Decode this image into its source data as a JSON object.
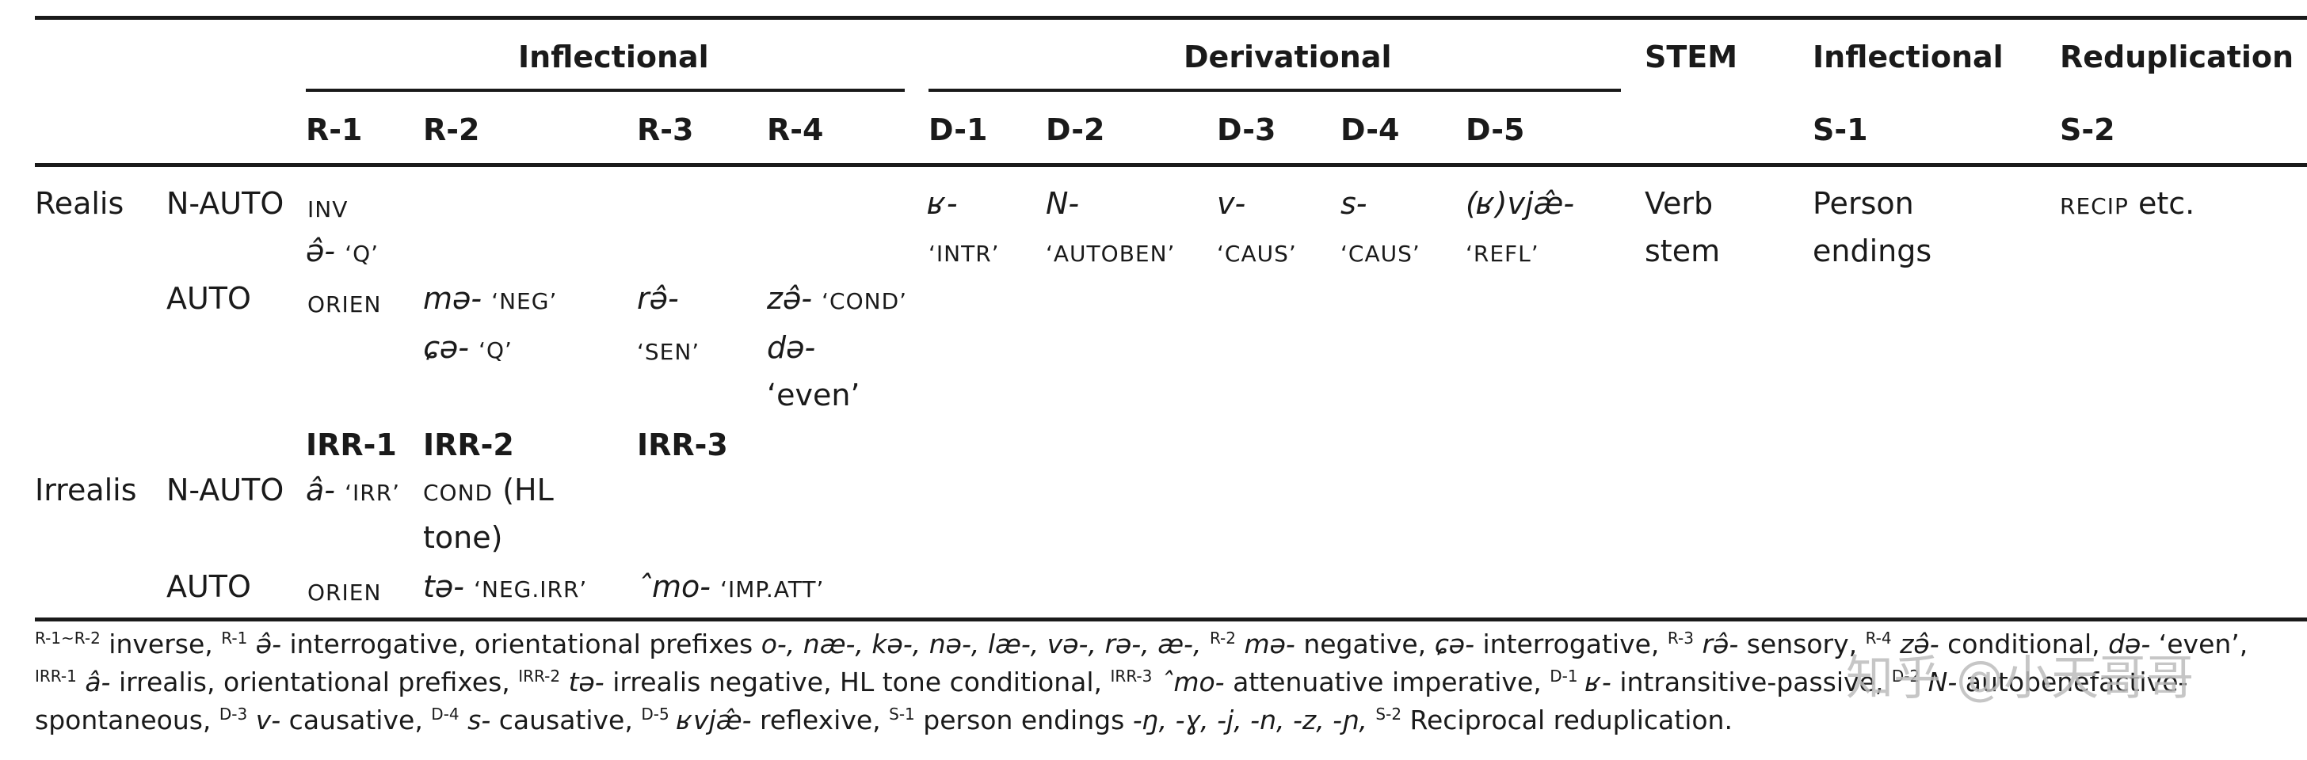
{
  "table": {
    "group_headers": {
      "inflectional_r": "Inflectional",
      "derivational": "Derivational",
      "stem": "STEM",
      "inflectional_s": "Inflectional",
      "reduplication": "Reduplication"
    },
    "slot_headers": [
      "R-1",
      "R-2",
      "R-3",
      "R-4",
      "D-1",
      "D-2",
      "D-3",
      "D-4",
      "D-5",
      "S-1",
      "S-2"
    ],
    "row_labels": {
      "realis": "Realis",
      "irrealis": "Irrealis",
      "n_auto": "N-AUTO",
      "auto": "AUTO"
    },
    "cells": {
      "realis_nauto_r1_a": "INV",
      "realis_nauto_r1_b_form": "ə̂-",
      "realis_nauto_r1_b_gloss": "‘Q’",
      "realis_d1_form": "ʁ-",
      "realis_d1_gloss": "‘INTR’",
      "realis_d2_form": "N-",
      "realis_d2_gloss": "‘AUTOBEN’",
      "realis_d3_form": "v-",
      "realis_d3_gloss": "‘CAUS’",
      "realis_d4_form": "s-",
      "realis_d4_gloss": "‘CAUS’",
      "realis_d5_form": "(ʁ)vjæ̂-",
      "realis_d5_gloss": "‘REFL’",
      "stem_line1": "Verb",
      "stem_line2": "stem",
      "s1_line1": "Person",
      "s1_line2": "endings",
      "s2_sc": "RECIP",
      "s2_rest": "etc.",
      "realis_auto_r1": "ORIEN",
      "realis_auto_r2a_form": "mə-",
      "realis_auto_r2a_gloss": "‘NEG’",
      "realis_auto_r2b_form": "ɕə-",
      "realis_auto_r2b_gloss": "‘Q’",
      "realis_auto_r3_form": "rə̂-",
      "realis_auto_r3_gloss": "‘SEN’",
      "realis_auto_r4a_form": "zə̂-",
      "realis_auto_r4a_gloss": "‘COND’",
      "realis_auto_r4b_form": "də-",
      "realis_auto_r4b_gloss": "‘even’",
      "irr1": "IRR-1",
      "irr2": "IRR-2",
      "irr3": "IRR-3",
      "irr_nauto_r1_form": "â-",
      "irr_nauto_r1_gloss": "‘IRR’",
      "irr_nauto_r2_sc": "COND",
      "irr_nauto_r2_rest": "(HL",
      "irr_nauto_r2_line2": "tone)",
      "irr_auto_r1": "ORIEN",
      "irr_auto_r2_form": "tə-",
      "irr_auto_r2_gloss": "‘NEG.IRR’",
      "irr_auto_r3_form": "ˆmo-",
      "irr_auto_r3_gloss": "‘IMP.ATT’"
    }
  },
  "notes": {
    "l1_s1": "R-1~R-2",
    "l1_t1": " inverse, ",
    "l1_s2": "R-1",
    "l1_i1": " ə̂-",
    "l1_t2": " interrogative, orientational prefixes ",
    "l1_i2": "o-, næ-, kə-, nə-, læ-, və-, rə-, æ-,",
    "l1_s3": "R-2",
    "l1_i3": " mə-",
    "l1_t3": " negative, ",
    "l1_i4": "ɕə-",
    "l1_t4": " interrogative, ",
    "l1_s4": "R-3",
    "l1_i5": " rə̂-",
    "l1_t5": " sensory, ",
    "l1_s5": "R-4",
    "l1_i6": " zə̂-",
    "l1_t6": " conditional, ",
    "l1_i7": "də-",
    "l1_t7": " ‘even’,",
    "l2_s1": "IRR-1",
    "l2_i1": " â-",
    "l2_t1": " irrealis, orientational prefixes, ",
    "l2_s2": "IRR-2",
    "l2_i2": " tə-",
    "l2_t2": " irrealis negative, HL tone conditional, ",
    "l2_s3": "IRR-3",
    "l2_i3": " ˆmo-",
    "l2_t3": " attenuative imperative, ",
    "l2_s4": "D-1",
    "l2_i4": " ʁ-",
    "l2_t4": " intransitive-passive, ",
    "l2_s5": "D-2",
    "l2_i5": " N-",
    "l2_t5": " autobenefactive-",
    "l3_t1": "spontaneous, ",
    "l3_s1": "D-3",
    "l3_i1": " v-",
    "l3_t2": " causative, ",
    "l3_s2": "D-4",
    "l3_i2": " s-",
    "l3_t3": " causative, ",
    "l3_s3": "D-5",
    "l3_i3": " ʁvjæ̂-",
    "l3_t4": " reflexive, ",
    "l3_s4": "S-1",
    "l3_t5": " person endings ",
    "l3_i4": "-ŋ, -ɣ, -j, -n, -z, -ɲ,",
    "l3_s5": "S-2",
    "l3_t6": " Reciprocal reduplication."
  },
  "watermark": "知乎 @小天哥哥"
}
